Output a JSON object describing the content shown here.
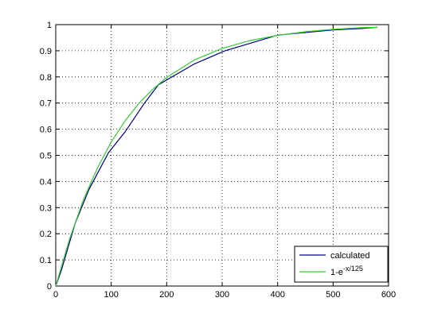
{
  "chart_data": {
    "type": "line",
    "xlim": [
      0,
      600
    ],
    "xticks": [
      0,
      100,
      200,
      300,
      400,
      500,
      600
    ],
    "ylim": [
      0,
      1
    ],
    "yticks": [
      0,
      0.1,
      0.2,
      0.3,
      0.4,
      0.5,
      0.6,
      0.7,
      0.8,
      0.9,
      1
    ],
    "grid": true,
    "legend": "lower right",
    "series": [
      {
        "name": "calculated",
        "color": "#000080",
        "x": [
          0,
          10,
          35,
          60,
          95,
          125,
          160,
          185,
          250,
          305,
          400,
          500,
          550,
          580
        ],
        "values": [
          0,
          0.06,
          0.24,
          0.37,
          0.51,
          0.59,
          0.7,
          0.77,
          0.85,
          0.9,
          0.96,
          0.98,
          0.985,
          0.99
        ]
      },
      {
        "name": "1-e",
        "name_exponent": "-x/125",
        "color": "#33cc33",
        "x": [
          0,
          25,
          50,
          75,
          100,
          125,
          150,
          175,
          200,
          250,
          300,
          350,
          400,
          450,
          500,
          550,
          580
        ],
        "values": [
          0,
          0.181,
          0.33,
          0.451,
          0.551,
          0.632,
          0.699,
          0.753,
          0.798,
          0.865,
          0.909,
          0.939,
          0.959,
          0.973,
          0.982,
          0.988,
          0.99
        ]
      }
    ]
  }
}
